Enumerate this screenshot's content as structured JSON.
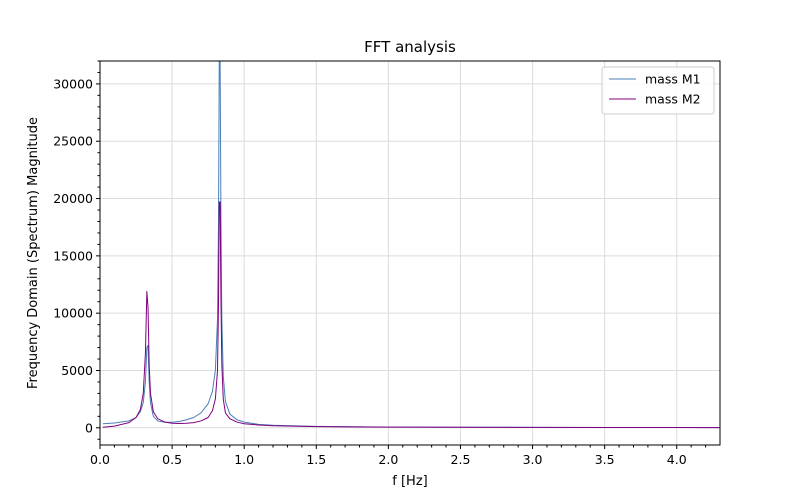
{
  "chart_data": {
    "type": "line",
    "title": "FFT analysis",
    "xlabel": "f [Hz]",
    "ylabel": "Frequency Domain (Spectrum) Magnitude",
    "xlim": [
      0.0,
      4.3
    ],
    "ylim": [
      -1500,
      32000
    ],
    "xticks": [
      0.0,
      0.5,
      1.0,
      1.5,
      2.0,
      2.5,
      3.0,
      3.5,
      4.0
    ],
    "xtick_labels": [
      "0.0",
      "0.5",
      "1.0",
      "1.5",
      "2.0",
      "2.5",
      "3.0",
      "3.5",
      "4.0"
    ],
    "yticks": [
      0,
      5000,
      10000,
      15000,
      20000,
      25000,
      30000
    ],
    "ytick_labels": [
      "0",
      "5000",
      "10000",
      "15000",
      "20000",
      "25000",
      "30000"
    ],
    "grid": true,
    "legend_position": "top-right",
    "series": [
      {
        "name": "mass M1",
        "color": "#4a7fb5",
        "x": [
          0.02,
          0.1,
          0.2,
          0.25,
          0.28,
          0.3,
          0.315,
          0.325,
          0.333,
          0.341,
          0.35,
          0.37,
          0.4,
          0.45,
          0.5,
          0.55,
          0.6,
          0.65,
          0.7,
          0.75,
          0.78,
          0.8,
          0.815,
          0.822,
          0.827,
          0.833,
          0.839,
          0.845,
          0.855,
          0.87,
          0.9,
          0.95,
          1.0,
          1.1,
          1.2,
          1.5,
          2.0,
          2.5,
          3.0,
          3.5,
          4.0,
          4.3
        ],
        "y": [
          350,
          420,
          600,
          900,
          1400,
          2200,
          4000,
          7000,
          7200,
          4000,
          2200,
          1000,
          600,
          480,
          480,
          550,
          700,
          900,
          1300,
          2100,
          3200,
          5000,
          9500,
          18000,
          32000,
          32000,
          18000,
          9500,
          4500,
          2300,
          1200,
          700,
          500,
          300,
          220,
          120,
          70,
          50,
          40,
          30,
          25,
          20
        ]
      },
      {
        "name": "mass M2",
        "color": "#800080",
        "x": [
          0.02,
          0.1,
          0.2,
          0.25,
          0.28,
          0.3,
          0.315,
          0.325,
          0.333,
          0.341,
          0.35,
          0.37,
          0.4,
          0.45,
          0.5,
          0.55,
          0.6,
          0.65,
          0.7,
          0.75,
          0.78,
          0.8,
          0.815,
          0.822,
          0.827,
          0.833,
          0.839,
          0.845,
          0.855,
          0.87,
          0.9,
          0.95,
          1.0,
          1.1,
          1.2,
          1.5,
          2.0,
          2.5,
          3.0,
          3.5,
          4.0,
          4.3
        ],
        "y": [
          50,
          150,
          450,
          900,
          1600,
          3000,
          6500,
          11900,
          10500,
          5500,
          3000,
          1400,
          800,
          500,
          400,
          380,
          400,
          450,
          600,
          900,
          1500,
          2500,
          5000,
          11000,
          19700,
          19700,
          11000,
          5500,
          2500,
          1300,
          800,
          500,
          350,
          250,
          180,
          100,
          60,
          45,
          35,
          28,
          22,
          18
        ]
      }
    ]
  }
}
